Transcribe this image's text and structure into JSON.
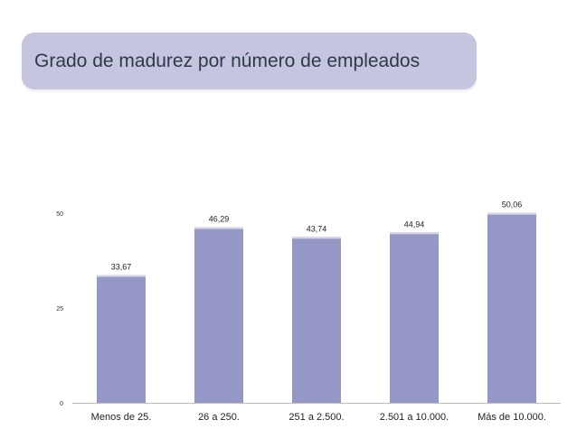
{
  "header": {
    "title": "Grado de madurez por número de empleados"
  },
  "colors": {
    "banner": "#c6c5df",
    "bar": "#9597c6",
    "bar_top": "#d5d6ea",
    "axis": "#bdbdbd"
  },
  "chart_data": {
    "type": "bar",
    "categories": [
      "Menos de 25.",
      "26 a 250.",
      "251 a 2.500.",
      "2.501 a 10.000.",
      "Más de 10.000."
    ],
    "values": [
      33.67,
      46.29,
      43.74,
      44.94,
      50.06
    ],
    "value_labels": [
      "33,67",
      "46,29",
      "43,74",
      "44,94",
      "50,06"
    ],
    "ylim": [
      0,
      50
    ],
    "yticks": [
      0,
      25,
      50
    ],
    "ytick_labels": [
      "0",
      "25",
      "50"
    ],
    "title": "Grado de madurez por número de empleados",
    "xlabel": "",
    "ylabel": "",
    "grid": false,
    "legend": "none"
  }
}
